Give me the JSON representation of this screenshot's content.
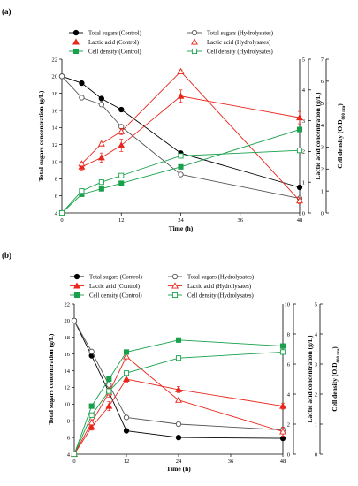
{
  "chart_data": [
    {
      "type": "line",
      "panel": "(a)",
      "xlabel": "Time (h)",
      "ylabel_left": "Total sugars concentration (g/L)",
      "ylabel_mid": "Lactic acid concentration (g/L)",
      "ylabel_right_prefix": "Cell density (O.D",
      "ylabel_right_sub": "600 nm",
      "ylabel_right_suffix": ")",
      "x_ticks": [
        "0",
        "12",
        "24",
        "36",
        "48"
      ],
      "xlim": [
        0,
        48
      ],
      "y_left_ticks": [
        "4",
        "6",
        "8",
        "10",
        "12",
        "14",
        "16",
        "18",
        "20",
        "22"
      ],
      "ylim_left": [
        4,
        22
      ],
      "y_mid_ticks": [
        "0",
        "1",
        "2",
        "3",
        "4",
        "5"
      ],
      "ylim_mid": [
        0,
        5
      ],
      "y_right_ticks": [
        "0",
        "1",
        "2",
        "3",
        "4",
        "5",
        "6",
        "7"
      ],
      "ylim_right": [
        0,
        7
      ],
      "legend": [
        "Total sugars (Control)",
        "Total sugars (Hydrolysates)",
        "Lactic acid (Control)",
        "Lactic acid (Hydrolysates)",
        "Cell density (Control)",
        "Cell density (Hydrolysates)"
      ],
      "series": [
        {
          "name": "Total sugars (Control)",
          "axis": "left",
          "color": "#000000",
          "marker": "circle",
          "filled": true,
          "x": [
            0,
            4,
            8,
            12,
            24,
            48
          ],
          "y": [
            20.0,
            19.2,
            17.4,
            16.1,
            11.0,
            7.0
          ],
          "err": [
            0,
            0.2,
            0.2,
            0.2,
            0.2,
            0.2
          ]
        },
        {
          "name": "Total sugars (Hydrolysates)",
          "axis": "left",
          "color": "#555555",
          "marker": "circle",
          "filled": false,
          "x": [
            0,
            4,
            8,
            12,
            24,
            48
          ],
          "y": [
            20.0,
            17.5,
            16.7,
            14.1,
            8.5,
            5.7
          ],
          "err": [
            0,
            0.2,
            0.2,
            0.2,
            0.2,
            0.2
          ]
        },
        {
          "name": "Lactic acid (Control)",
          "axis": "mid",
          "color": "#e8261c",
          "marker": "triangle",
          "filled": true,
          "x": [
            4,
            8,
            12,
            24,
            48
          ],
          "y": [
            1.5,
            1.8,
            2.2,
            3.8,
            3.1
          ],
          "err": [
            0.1,
            0.15,
            0.2,
            0.2,
            0.2
          ]
        },
        {
          "name": "Lactic acid (Hydrolysates)",
          "axis": "mid",
          "color": "#e8261c",
          "marker": "triangle",
          "filled": false,
          "x": [
            4,
            8,
            12,
            24,
            48
          ],
          "y": [
            1.6,
            2.25,
            2.65,
            4.6,
            0.4
          ],
          "err": [
            0.05,
            0.05,
            0.1,
            0.05,
            0.1
          ]
        },
        {
          "name": "Cell density (Control)",
          "axis": "right",
          "color": "#18a04a",
          "marker": "square",
          "filled": true,
          "x": [
            0,
            4,
            8,
            12,
            24,
            48
          ],
          "y": [
            0.0,
            0.85,
            1.1,
            1.35,
            2.1,
            3.8
          ],
          "err": [
            0,
            0.05,
            0.05,
            0.05,
            0.05,
            0.1
          ]
        },
        {
          "name": "Cell density (Hydrolysates)",
          "axis": "right",
          "color": "#18a04a",
          "marker": "square",
          "filled": false,
          "x": [
            0,
            4,
            8,
            12,
            24,
            48
          ],
          "y": [
            0.0,
            1.0,
            1.4,
            1.7,
            2.6,
            2.85
          ],
          "err": [
            0,
            0.05,
            0.05,
            0.05,
            0.05,
            0.05
          ]
        }
      ]
    },
    {
      "type": "line",
      "panel": "(b)",
      "xlabel": "Time (h)",
      "ylabel_left": "Total sugars concentration (g/L)",
      "ylabel_mid": "Lactic acid concentration (g/L)",
      "ylabel_right_prefix": "Cell density (O.D",
      "ylabel_right_sub": "600 nm",
      "ylabel_right_suffix": ")",
      "x_ticks": [
        "0",
        "12",
        "24",
        "36",
        "48"
      ],
      "xlim": [
        0,
        48
      ],
      "y_left_ticks": [
        "4",
        "6",
        "8",
        "10",
        "12",
        "14",
        "16",
        "18",
        "20",
        "22"
      ],
      "ylim_left": [
        4,
        22
      ],
      "y_mid_ticks": [
        "0",
        "2",
        "4",
        "6",
        "8",
        "10"
      ],
      "ylim_mid": [
        0,
        10
      ],
      "y_right_ticks": [
        "0",
        "1",
        "2",
        "3",
        "4",
        "5"
      ],
      "ylim_right": [
        0,
        5
      ],
      "legend": [
        "Total sugars (Control)",
        "Total sugars (Hydrolysates)",
        "Lactic acid (Control)",
        "Lactic acid (Hydrolysates)",
        "Cell density (Control)",
        "Cell density (Hydrolysates)"
      ],
      "series": [
        {
          "name": "Total sugars (Control)",
          "axis": "left",
          "color": "#000000",
          "marker": "circle",
          "filled": true,
          "x": [
            0,
            4,
            8,
            12,
            24,
            48
          ],
          "y": [
            20.0,
            15.8,
            11.4,
            6.8,
            6.0,
            5.9
          ],
          "err": [
            0,
            0.2,
            0.2,
            0.1,
            0.1,
            0.1
          ]
        },
        {
          "name": "Total sugars (Hydrolysates)",
          "axis": "left",
          "color": "#555555",
          "marker": "circle",
          "filled": false,
          "x": [
            0,
            4,
            8,
            12,
            24,
            48
          ],
          "y": [
            20.0,
            16.3,
            12.3,
            8.4,
            7.6,
            6.9
          ],
          "err": [
            0,
            0.2,
            0.2,
            0.2,
            0.1,
            0.1
          ]
        },
        {
          "name": "Lactic acid (Control)",
          "axis": "mid",
          "color": "#e8261c",
          "marker": "triangle",
          "filled": true,
          "x": [
            0,
            4,
            8,
            12,
            24,
            48
          ],
          "y": [
            0.0,
            1.8,
            3.2,
            5.0,
            4.3,
            3.2
          ],
          "err": [
            0,
            0.2,
            0.3,
            0.2,
            0.2,
            0.2
          ]
        },
        {
          "name": "Lactic acid (Hydrolysates)",
          "axis": "mid",
          "color": "#e8261c",
          "marker": "triangle",
          "filled": false,
          "x": [
            0,
            4,
            8,
            12,
            24,
            48
          ],
          "y": [
            0.0,
            2.1,
            4.1,
            6.5,
            3.6,
            1.5
          ],
          "err": [
            0,
            0.2,
            0.3,
            0.3,
            0.1,
            0.3
          ]
        },
        {
          "name": "Cell density (Control)",
          "axis": "right",
          "color": "#18a04a",
          "marker": "square",
          "filled": true,
          "x": [
            0,
            4,
            8,
            12,
            24,
            48
          ],
          "y": [
            0.0,
            1.6,
            2.5,
            3.4,
            3.8,
            3.6
          ],
          "err": [
            0,
            0.05,
            0.05,
            0.05,
            0.05,
            0.05
          ]
        },
        {
          "name": "Cell density (Hydrolysates)",
          "axis": "right",
          "color": "#18a04a",
          "marker": "square",
          "filled": false,
          "x": [
            0,
            4,
            8,
            12,
            24,
            48
          ],
          "y": [
            0.0,
            1.3,
            2.1,
            2.7,
            3.2,
            3.4
          ],
          "err": [
            0,
            0.05,
            0.05,
            0.05,
            0.05,
            0.05
          ]
        }
      ]
    }
  ]
}
